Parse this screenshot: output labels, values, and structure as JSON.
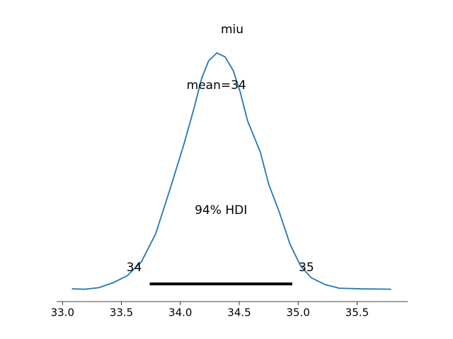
{
  "chart_data": {
    "type": "line",
    "title": "miu",
    "x": [
      33.08,
      33.19,
      33.31,
      33.43,
      33.55,
      33.67,
      33.79,
      33.91,
      34.03,
      34.12,
      34.18,
      34.24,
      34.31,
      34.38,
      34.45,
      34.51,
      34.57,
      34.68,
      34.75,
      34.84,
      34.93,
      35.02,
      35.11,
      35.23,
      35.35,
      35.53,
      35.79
    ],
    "series": [
      {
        "color": "#1f77b4",
        "values": [
          0.004,
          0.002,
          0.01,
          0.035,
          0.07,
          0.14,
          0.28,
          0.5,
          0.73,
          0.92,
          1.06,
          1.15,
          1.19,
          1.17,
          1.1,
          0.99,
          0.85,
          0.69,
          0.53,
          0.39,
          0.23,
          0.12,
          0.06,
          0.025,
          0.007,
          0.004,
          0.002
        ]
      }
    ],
    "mean": {
      "value": 34.33,
      "label": "mean=34"
    },
    "hdi": {
      "values": [
        33.74,
        34.95
      ],
      "value_labels": [
        "34",
        "35"
      ],
      "color": "#000000"
    },
    "hdi_label": "94% HDI",
    "xlim": [
      32.95,
      35.93
    ],
    "ylim": [
      -0.06,
      1.25
    ],
    "xticks": [
      {
        "value": 33,
        "label": "33.0"
      },
      {
        "value": 33.5,
        "label": "33.5"
      },
      {
        "value": 34,
        "label": "34.0"
      },
      {
        "value": 34.5,
        "label": "34.5"
      },
      {
        "value": 35,
        "label": "35.0"
      },
      {
        "value": 35.5,
        "label": "35.5"
      }
    ]
  }
}
